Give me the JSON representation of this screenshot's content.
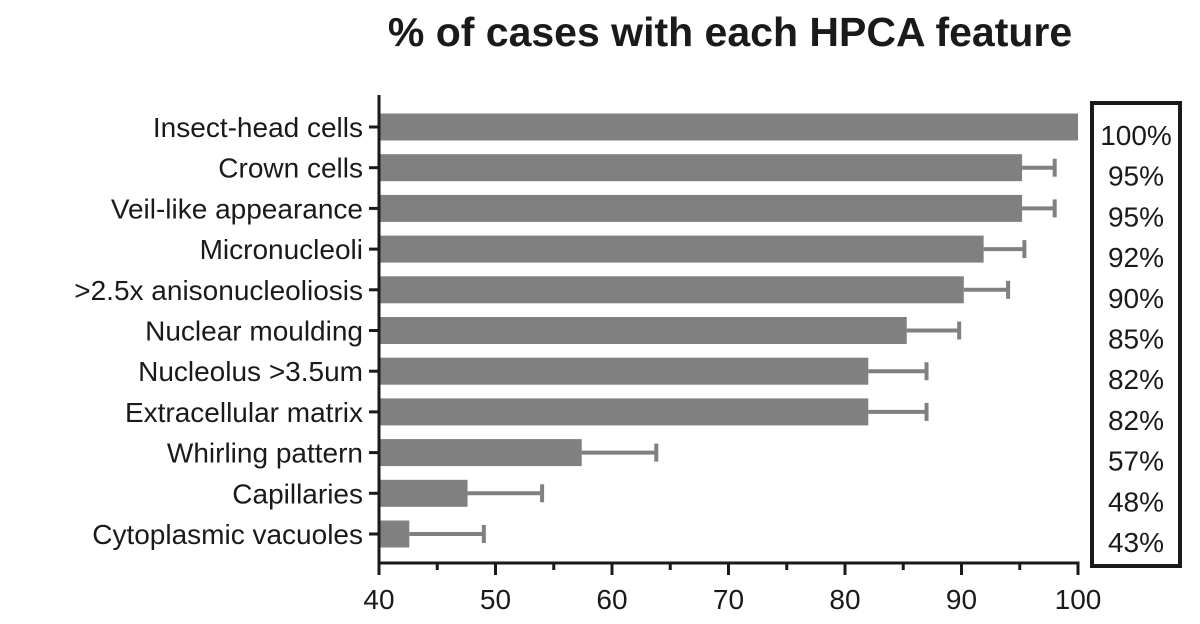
{
  "chart_data": {
    "type": "bar",
    "orientation": "horizontal",
    "title": "% of cases with each HPCA feature",
    "xlabel": "",
    "ylabel": "",
    "xlim": [
      40,
      100
    ],
    "x_ticks": [
      40,
      50,
      60,
      70,
      80,
      90,
      100
    ],
    "x_tick_labels": [
      "40",
      "50",
      "60",
      "70",
      "80",
      "90",
      "100"
    ],
    "categories": [
      "Insect-head cells",
      "Crown cells",
      "Veil-like appearance",
      "Micronucleoli",
      ">2.5x anisonucleoliosis",
      "Nuclear moulding",
      "Nucleolus >3.5um",
      "Extracellular matrix",
      "Whirling pattern",
      "Capillaries",
      "Cytoplasmic vacuoles"
    ],
    "values": [
      100,
      95.2,
      95.2,
      91.9,
      90.2,
      85.3,
      82,
      82,
      57.4,
      47.6,
      42.6
    ],
    "error_upper": [
      null,
      98,
      98,
      95.4,
      94,
      89.8,
      87,
      87,
      63.8,
      54,
      49
    ],
    "value_labels": [
      "100%",
      "95%",
      "95%",
      "92%",
      "90%",
      "85%",
      "82%",
      "82%",
      "57%",
      "48%",
      "43%"
    ],
    "grid": false,
    "bar_color": "#808080",
    "error_color": "#808080"
  }
}
